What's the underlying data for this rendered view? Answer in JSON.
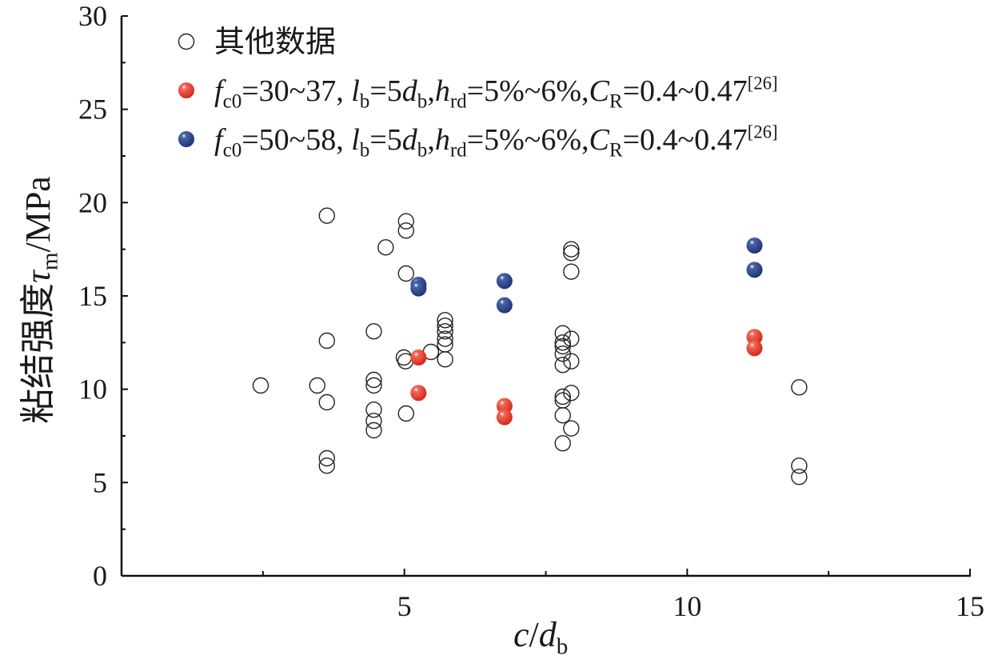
{
  "chart_data": {
    "type": "scatter",
    "title": "",
    "xlabel": [
      {
        "t": "c",
        "i": true
      },
      {
        "t": "/"
      },
      {
        "t": "d",
        "i": true
      },
      {
        "t": "b",
        "sub": true
      }
    ],
    "xlabel_text": "c/db",
    "ylabel": [
      {
        "t": "粘结强度"
      },
      {
        "t": "τ",
        "i": true
      },
      {
        "t": "m",
        "sub": true
      },
      {
        "t": "/MPa"
      }
    ],
    "ylabel_text": "粘结强度τm/MPa",
    "xlim": [
      0,
      15
    ],
    "ylim": [
      0,
      30
    ],
    "xticks": [
      5,
      10,
      15
    ],
    "yticks": [
      0,
      5,
      10,
      15,
      20,
      25,
      30
    ],
    "xminor": [
      2.5,
      7.5,
      12.5
    ],
    "yminor": [
      2.5,
      7.5,
      12.5,
      17.5,
      22.5,
      27.5
    ],
    "grid": false,
    "legend_position": "top-left",
    "series": [
      {
        "name": "其他数据",
        "label": [
          {
            "t": "其他数据"
          }
        ],
        "style": "open",
        "color": "#222222",
        "points": [
          [
            2.46,
            10.2
          ],
          [
            3.46,
            10.2
          ],
          [
            3.63,
            19.3
          ],
          [
            3.63,
            12.6
          ],
          [
            3.63,
            9.3
          ],
          [
            3.63,
            6.3
          ],
          [
            3.63,
            5.9
          ],
          [
            4.46,
            13.1
          ],
          [
            4.46,
            10.5
          ],
          [
            4.46,
            10.2
          ],
          [
            4.46,
            8.9
          ],
          [
            4.46,
            8.3
          ],
          [
            4.46,
            7.8
          ],
          [
            4.67,
            17.6
          ],
          [
            5.03,
            19.0
          ],
          [
            5.03,
            18.5
          ],
          [
            5.03,
            16.2
          ],
          [
            4.99,
            11.7
          ],
          [
            5.02,
            11.5
          ],
          [
            5.03,
            8.7
          ],
          [
            5.47,
            12.0
          ],
          [
            5.72,
            13.7
          ],
          [
            5.72,
            13.4
          ],
          [
            5.72,
            13.1
          ],
          [
            5.72,
            12.7
          ],
          [
            5.72,
            12.4
          ],
          [
            5.72,
            11.6
          ],
          [
            7.8,
            13.0
          ],
          [
            7.8,
            12.5
          ],
          [
            7.8,
            12.3
          ],
          [
            7.8,
            11.9
          ],
          [
            7.8,
            11.3
          ],
          [
            7.8,
            9.6
          ],
          [
            7.8,
            9.4
          ],
          [
            7.8,
            8.6
          ],
          [
            7.8,
            7.1
          ],
          [
            7.95,
            17.5
          ],
          [
            7.95,
            17.3
          ],
          [
            7.95,
            16.3
          ],
          [
            7.95,
            12.7
          ],
          [
            7.95,
            11.5
          ],
          [
            7.95,
            9.8
          ],
          [
            7.95,
            7.9
          ],
          [
            11.98,
            10.1
          ],
          [
            11.98,
            5.9
          ],
          [
            11.98,
            5.3
          ]
        ]
      },
      {
        "name": "fc0=30~37, lb=5db,hrd=5%~6%,CR=0.4~0.47[26]",
        "label": [
          {
            "t": "f",
            "i": true
          },
          {
            "t": "c0",
            "sub": true
          },
          {
            "t": "=30~37, "
          },
          {
            "t": "l",
            "i": true
          },
          {
            "t": "b",
            "sub": true
          },
          {
            "t": "=5"
          },
          {
            "t": "d",
            "i": true
          },
          {
            "t": "b",
            "sub": true
          },
          {
            "t": ","
          },
          {
            "t": "h",
            "i": true
          },
          {
            "t": "rd",
            "sub": true
          },
          {
            "t": "=5%~6%,"
          },
          {
            "t": "C",
            "i": true
          },
          {
            "t": "R",
            "sub": true
          },
          {
            "t": "=0.4~0.47"
          },
          {
            "t": "[26]",
            "sup": true
          }
        ],
        "style": "filled",
        "color": "#e03a2a",
        "points": [
          [
            5.25,
            11.7
          ],
          [
            5.25,
            9.8
          ],
          [
            6.77,
            9.1
          ],
          [
            6.77,
            8.5
          ],
          [
            11.19,
            12.8
          ],
          [
            11.19,
            12.2
          ]
        ]
      },
      {
        "name": "fc0=50~58, lb=5db,hrd=5%~6%,CR=0.4~0.47[26]",
        "label": [
          {
            "t": "f",
            "i": true
          },
          {
            "t": "c0",
            "sub": true
          },
          {
            "t": "=50~58, "
          },
          {
            "t": "l",
            "i": true
          },
          {
            "t": "b",
            "sub": true
          },
          {
            "t": "=5"
          },
          {
            "t": "d",
            "i": true
          },
          {
            "t": "b",
            "sub": true
          },
          {
            "t": ","
          },
          {
            "t": "h",
            "i": true
          },
          {
            "t": "rd",
            "sub": true
          },
          {
            "t": "=5%~6%,"
          },
          {
            "t": "C",
            "i": true
          },
          {
            "t": "R",
            "sub": true
          },
          {
            "t": "=0.4~0.47"
          },
          {
            "t": "[26]",
            "sup": true
          }
        ],
        "style": "filled",
        "color": "#27408b",
        "points": [
          [
            5.25,
            15.6
          ],
          [
            5.25,
            15.4
          ],
          [
            6.77,
            15.8
          ],
          [
            6.77,
            14.5
          ],
          [
            11.19,
            17.7
          ],
          [
            11.19,
            16.4
          ]
        ]
      }
    ]
  }
}
